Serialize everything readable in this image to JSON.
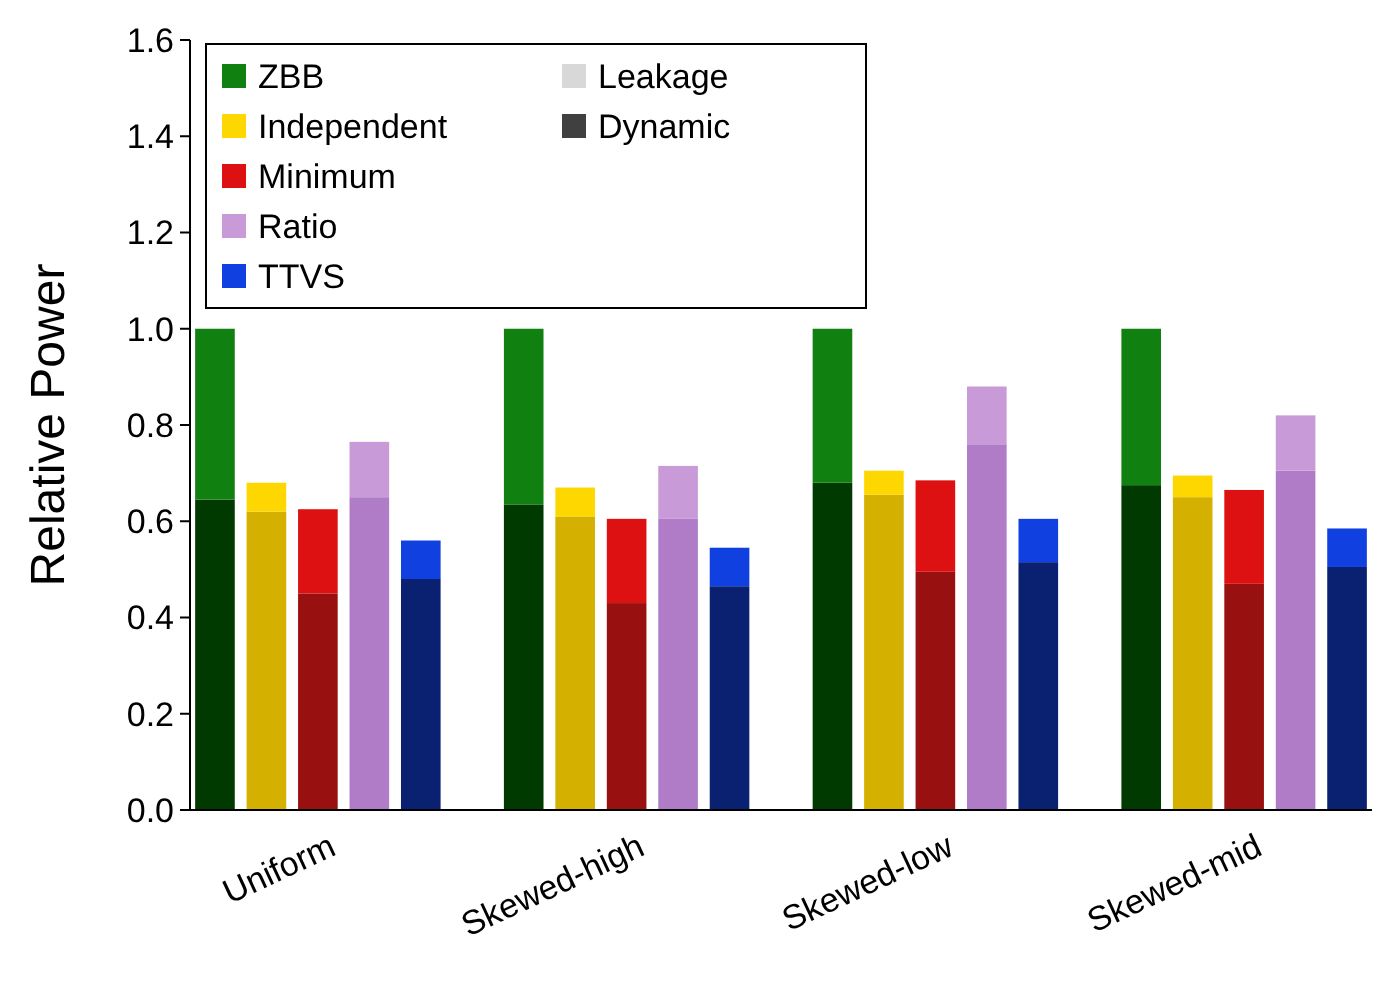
{
  "chart_data": {
    "type": "bar",
    "stacked": true,
    "ylabel": "Relative Power",
    "ylim": [
      0,
      1.6
    ],
    "yticks": [
      {
        "value": 0,
        "label": "0.0"
      },
      {
        "value": 0.2,
        "label": "0.2"
      },
      {
        "value": 0.4,
        "label": "0.4"
      },
      {
        "value": 0.6,
        "label": "0.6"
      },
      {
        "value": 0.8,
        "label": "0.8"
      },
      {
        "value": 1,
        "label": "1.0"
      },
      {
        "value": 1.2,
        "label": "1.2"
      },
      {
        "value": 1.4,
        "label": "1.4"
      },
      {
        "value": 1.6,
        "label": "1.6"
      }
    ],
    "legend": "top left",
    "grid": false,
    "categories": [
      null,
      null,
      "Uniform",
      null,
      null,
      null,
      null,
      null,
      "Skewed-high",
      null,
      null,
      null,
      null,
      null,
      "Skewed-low",
      null,
      null,
      null,
      null,
      null,
      "Skewed-mid",
      null,
      null
    ],
    "series": [
      {
        "color": "#003a00",
        "values": [
          0.645,
          null,
          null,
          null,
          null,
          null,
          0.635,
          null,
          null,
          null,
          null,
          null,
          0.68,
          null,
          null,
          null,
          null,
          null,
          0.675,
          null,
          null,
          null,
          null
        ]
      },
      {
        "color": "#d4b000",
        "values": [
          null,
          0.62,
          null,
          null,
          null,
          null,
          null,
          0.61,
          null,
          null,
          null,
          null,
          null,
          0.655,
          null,
          null,
          null,
          null,
          null,
          0.65,
          null,
          null,
          null
        ]
      },
      {
        "color": "#991010",
        "values": [
          null,
          null,
          0.45,
          null,
          null,
          null,
          null,
          null,
          0.43,
          null,
          null,
          null,
          null,
          null,
          0.495,
          null,
          null,
          null,
          null,
          null,
          0.47,
          null,
          null
        ]
      },
      {
        "color": "#b07cc8",
        "values": [
          null,
          null,
          null,
          0.65,
          null,
          null,
          null,
          null,
          null,
          0.605,
          null,
          null,
          null,
          null,
          null,
          0.76,
          null,
          null,
          null,
          null,
          null,
          0.705,
          null
        ]
      },
      {
        "color": "#0a2070",
        "values": [
          null,
          null,
          null,
          null,
          0.48,
          null,
          null,
          null,
          null,
          null,
          0.465,
          null,
          null,
          null,
          null,
          null,
          0.515,
          null,
          null,
          null,
          null,
          null,
          0.505
        ]
      },
      {
        "name": "ZBB",
        "color": "#108010",
        "values": [
          0.355,
          null,
          null,
          null,
          null,
          null,
          0.365,
          null,
          null,
          null,
          null,
          null,
          0.32,
          null,
          null,
          null,
          null,
          null,
          0.325,
          null,
          null,
          null,
          null
        ]
      },
      {
        "name": "Independent",
        "color": "#ffd700",
        "values": [
          null,
          0.06,
          null,
          null,
          null,
          null,
          null,
          0.06,
          null,
          null,
          null,
          null,
          null,
          0.05,
          null,
          null,
          null,
          null,
          null,
          0.045,
          null,
          null,
          null
        ]
      },
      {
        "name": "Minimum",
        "color": "#dd1111",
        "values": [
          null,
          null,
          0.175,
          null,
          null,
          null,
          null,
          null,
          0.175,
          null,
          null,
          null,
          null,
          null,
          0.19,
          null,
          null,
          null,
          null,
          null,
          0.195,
          null,
          null
        ]
      },
      {
        "name": "Ratio",
        "color": "#c89ad8",
        "values": [
          null,
          null,
          null,
          0.115,
          null,
          null,
          null,
          null,
          null,
          0.11,
          null,
          null,
          null,
          null,
          null,
          0.12,
          null,
          null,
          null,
          null,
          null,
          0.115,
          null
        ]
      },
      {
        "name": "TTVS",
        "color": "#1040e0",
        "values": [
          null,
          null,
          null,
          null,
          0.08,
          null,
          null,
          null,
          null,
          null,
          0.08,
          null,
          null,
          null,
          null,
          null,
          0.09,
          null,
          null,
          null,
          null,
          null,
          0.08
        ]
      },
      {
        "name": "Leakage",
        "color": "#d8d8d8",
        "values": [
          null,
          null,
          null,
          null,
          null,
          null,
          null,
          null,
          null,
          null,
          null,
          null,
          null,
          null,
          null,
          null,
          null,
          null,
          null,
          null,
          null,
          null,
          null
        ]
      },
      {
        "name": "Dynamic",
        "color": "#404040",
        "values": [
          null,
          null,
          null,
          null,
          null,
          null,
          null,
          null,
          null,
          null,
          null,
          null,
          null,
          null,
          null,
          null,
          null,
          null,
          null,
          null,
          null,
          null,
          null
        ]
      }
    ]
  }
}
